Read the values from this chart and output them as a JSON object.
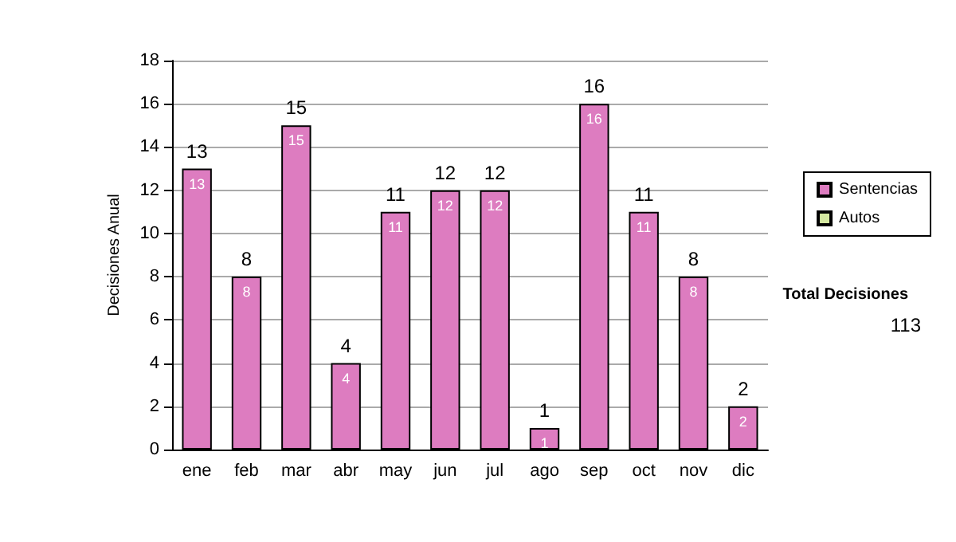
{
  "chart_data": {
    "type": "bar",
    "ylabel": "Decisiones Anual",
    "categories": [
      "ene",
      "feb",
      "mar",
      "abr",
      "may",
      "jun",
      "jul",
      "ago",
      "sep",
      "oct",
      "nov",
      "dic"
    ],
    "series": [
      {
        "name": "Sentencias",
        "color": "#dd7cc0",
        "values": [
          13,
          8,
          15,
          4,
          11,
          12,
          12,
          1,
          16,
          11,
          8,
          2
        ]
      },
      {
        "name": "Autos",
        "color": "#d4e8a0",
        "values": [
          null,
          null,
          null,
          null,
          null,
          null,
          null,
          null,
          null,
          null,
          null,
          null
        ]
      }
    ],
    "stacked": true,
    "data_labels": true,
    "totals": [
      "13",
      "8",
      "15",
      "4",
      "11",
      "12",
      "12",
      "1",
      "16",
      "11",
      "8",
      "2"
    ],
    "ylim": [
      0,
      18
    ],
    "yticks": [
      0,
      2,
      4,
      6,
      8,
      10,
      12,
      14,
      16,
      18
    ],
    "grid": "y",
    "legend": "right",
    "annotations": [
      "Total Decisiones",
      "113"
    ]
  }
}
